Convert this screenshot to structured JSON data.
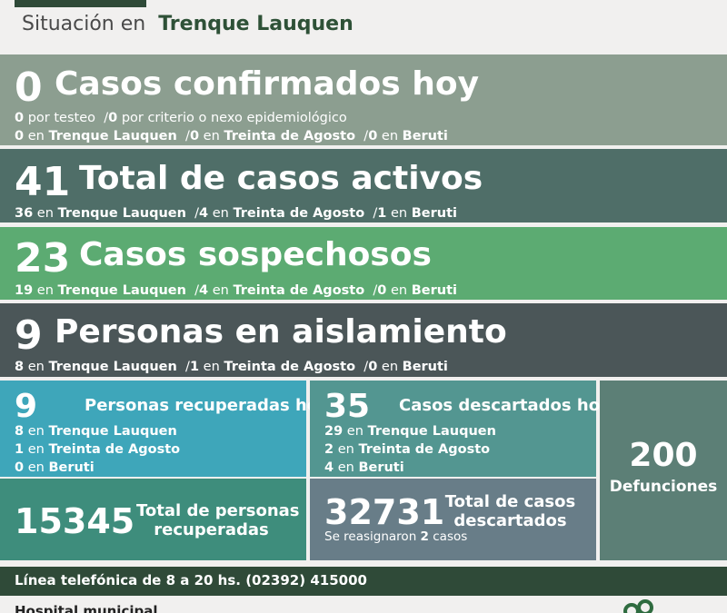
{
  "header": {
    "prefix": "Situación en",
    "city": "Trenque Lauquen"
  },
  "confirmados": {
    "number": "0",
    "title": "Casos confirmados hoy",
    "line1": [
      {
        "value": "0",
        "text": "por testeo"
      },
      {
        "value": "0",
        "text": "por criterio o nexo epidemiológico"
      }
    ],
    "line2": [
      {
        "value": "0",
        "en": "en",
        "place": "Trenque Lauquen"
      },
      {
        "value": "0",
        "en": "en",
        "place": "Treinta de Agosto"
      },
      {
        "value": "0",
        "en": "en",
        "place": "Beruti"
      }
    ]
  },
  "activos": {
    "number": "41",
    "title": "Total de casos activos",
    "line": [
      {
        "value": "36",
        "en": "en",
        "place": "Trenque Lauquen"
      },
      {
        "value": "4",
        "en": "en",
        "place": "Treinta de Agosto"
      },
      {
        "value": "1",
        "en": "en",
        "place": "Beruti"
      }
    ]
  },
  "sospechosos": {
    "number": "23",
    "title": "Casos sospechosos",
    "line": [
      {
        "value": "19",
        "en": "en",
        "place": "Trenque Lauquen"
      },
      {
        "value": "4",
        "en": "en",
        "place": "Treinta de Agosto"
      },
      {
        "value": "0",
        "en": "en",
        "place": "Beruti"
      }
    ]
  },
  "aislamiento": {
    "number": "9",
    "title": "Personas en aislamiento",
    "line": [
      {
        "value": "8",
        "en": "en",
        "place": "Trenque Lauquen"
      },
      {
        "value": "1",
        "en": "en",
        "place": "Treinta de Agosto"
      },
      {
        "value": "0",
        "en": "en",
        "place": "Beruti"
      }
    ]
  },
  "recuperados_hoy": {
    "number": "9",
    "title": "Personas recuperadas hoy",
    "rows": [
      {
        "value": "8",
        "en": "en",
        "place": "Trenque Lauquen"
      },
      {
        "value": "1",
        "en": "en",
        "place": "Treinta de Agosto"
      },
      {
        "value": "0",
        "en": "en",
        "place": "Beruti"
      }
    ]
  },
  "recuperados_total": {
    "number": "15345",
    "title_l1": "Total de personas",
    "title_l2": "recuperadas"
  },
  "descartados_hoy": {
    "number": "35",
    "title": "Casos descartados hoy",
    "rows": [
      {
        "value": "29",
        "en": "en",
        "place": "Trenque Lauquen"
      },
      {
        "value": "2",
        "en": "en",
        "place": "Treinta de Agosto"
      },
      {
        "value": "4",
        "en": "en",
        "place": "Beruti"
      }
    ]
  },
  "descartados_total": {
    "number": "32731",
    "title_l1": "Total de casos",
    "title_l2": "descartados",
    "note_pre": "Se reasignaron",
    "note_value": "2",
    "note_post": "casos"
  },
  "defunciones": {
    "number": "200",
    "label": "Defunciones"
  },
  "phone": {
    "text": "Línea telefónica de 8 a 20 hs. (02392) 415000"
  },
  "footer": {
    "text": "Hospital municipal"
  },
  "colors": {
    "dark_green": "#2f4a38",
    "confirmados": "#8c9e90",
    "activos": "#4f6e68",
    "sospechosos": "#5cab72",
    "aislamiento": "#4b5658",
    "recuperados_hoy": "#3ea6ba",
    "recuperados_total": "#3e8d7c",
    "descartados_hoy": "#539691",
    "descartados_total": "#687d88",
    "defunciones": "#5c7f76"
  },
  "icons": {
    "logo": "municipal-logo-icon"
  }
}
